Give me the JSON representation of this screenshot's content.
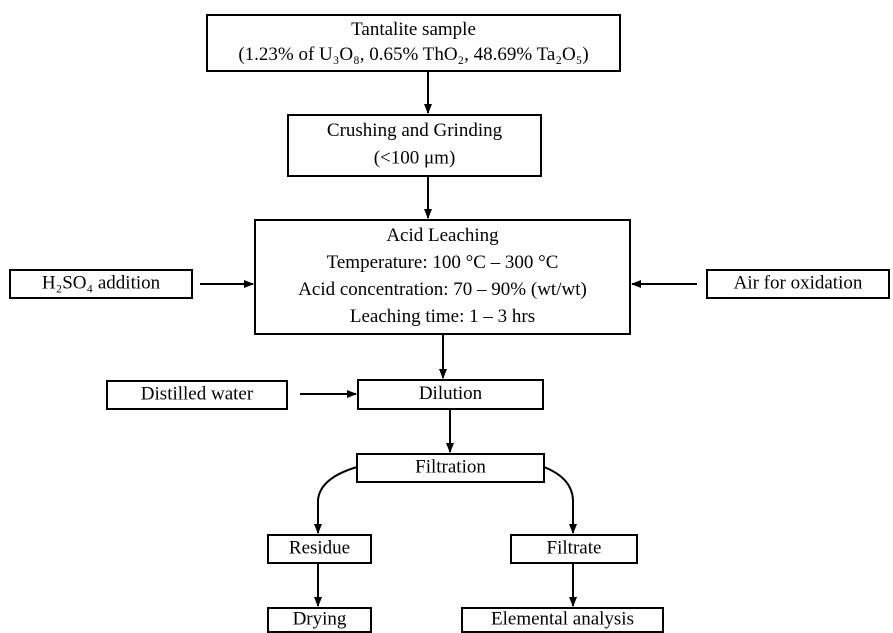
{
  "nodes": [
    {
      "id": "sample",
      "lines": [
        "Tantalite sample",
        "(1.23% of U₃O₈, 0.65% ThO₂, 48.69% Ta₂O₅)"
      ]
    },
    {
      "id": "crushing",
      "lines": [
        "Crushing and Grinding",
        "(<100 μm)"
      ]
    },
    {
      "id": "leaching",
      "lines": [
        "Acid Leaching",
        "Temperature: 100 °C – 300 °C",
        "Acid concentration: 70 – 90% (wt/wt)",
        "Leaching time: 1 – 3 hrs"
      ]
    },
    {
      "id": "acid",
      "lines": [
        "H₂SO₄ addition"
      ]
    },
    {
      "id": "air",
      "lines": [
        "Air for oxidation"
      ]
    },
    {
      "id": "dilution",
      "lines": [
        "Dilution"
      ]
    },
    {
      "id": "water",
      "lines": [
        "Distilled water"
      ]
    },
    {
      "id": "filtration",
      "lines": [
        "Filtration"
      ]
    },
    {
      "id": "residue",
      "lines": [
        "Residue"
      ]
    },
    {
      "id": "filtrate",
      "lines": [
        "Filtrate"
      ]
    },
    {
      "id": "drying",
      "lines": [
        "Drying"
      ]
    },
    {
      "id": "analysis",
      "lines": [
        "Elemental analysis"
      ]
    }
  ]
}
